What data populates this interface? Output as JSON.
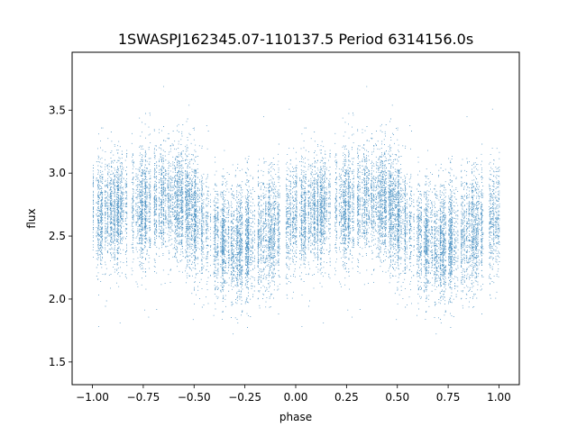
{
  "chart_data": {
    "type": "scatter",
    "title": "1SWASPJ162345.07-110137.5 Period 6314156.0s",
    "xlabel": "phase",
    "ylabel": "flux",
    "xlim": [
      -1.1,
      1.1
    ],
    "ylim": [
      1.32,
      3.96
    ],
    "xticks": [
      -1.0,
      -0.75,
      -0.5,
      -0.25,
      0.0,
      0.25,
      0.5,
      0.75,
      1.0
    ],
    "xtick_labels": [
      "−1.00",
      "−0.75",
      "−0.50",
      "−0.25",
      "0.00",
      "0.25",
      "0.50",
      "0.75",
      "1.00"
    ],
    "yticks": [
      1.5,
      2.0,
      2.5,
      3.0,
      3.5
    ],
    "ytick_labels": [
      "1.5",
      "2.0",
      "2.5",
      "3.0",
      "3.5"
    ],
    "grid": false,
    "legend": "none",
    "point_color": "#1f77b4",
    "series": [
      {
        "profile_phase": [
          0.0,
          0.05,
          0.1,
          0.15,
          0.2,
          0.25,
          0.3,
          0.35,
          0.4,
          0.45,
          0.5,
          0.55,
          0.6,
          0.65,
          0.7,
          0.75,
          0.8,
          0.85,
          0.9,
          0.95,
          1.0
        ],
        "profile_flux": [
          2.65,
          2.68,
          2.7,
          2.72,
          2.73,
          2.72,
          2.76,
          2.78,
          2.77,
          2.74,
          2.68,
          2.58,
          2.5,
          2.46,
          2.45,
          2.46,
          2.48,
          2.52,
          2.58,
          2.62,
          2.65
        ],
        "scatter_sigma": 0.22,
        "range_flux": [
          1.43,
          3.85
        ],
        "observed_phase_windows": [
          [
            0.0,
            0.05
          ],
          [
            0.06,
            0.17
          ],
          [
            0.19,
            0.25
          ],
          [
            0.25,
            0.29
          ],
          [
            0.3,
            0.45
          ],
          [
            0.45,
            0.58
          ],
          [
            0.59,
            0.66
          ],
          [
            0.66,
            0.8
          ],
          [
            0.81,
            0.88
          ],
          [
            0.88,
            0.93
          ],
          [
            0.95,
            1.0
          ]
        ]
      }
    ]
  }
}
